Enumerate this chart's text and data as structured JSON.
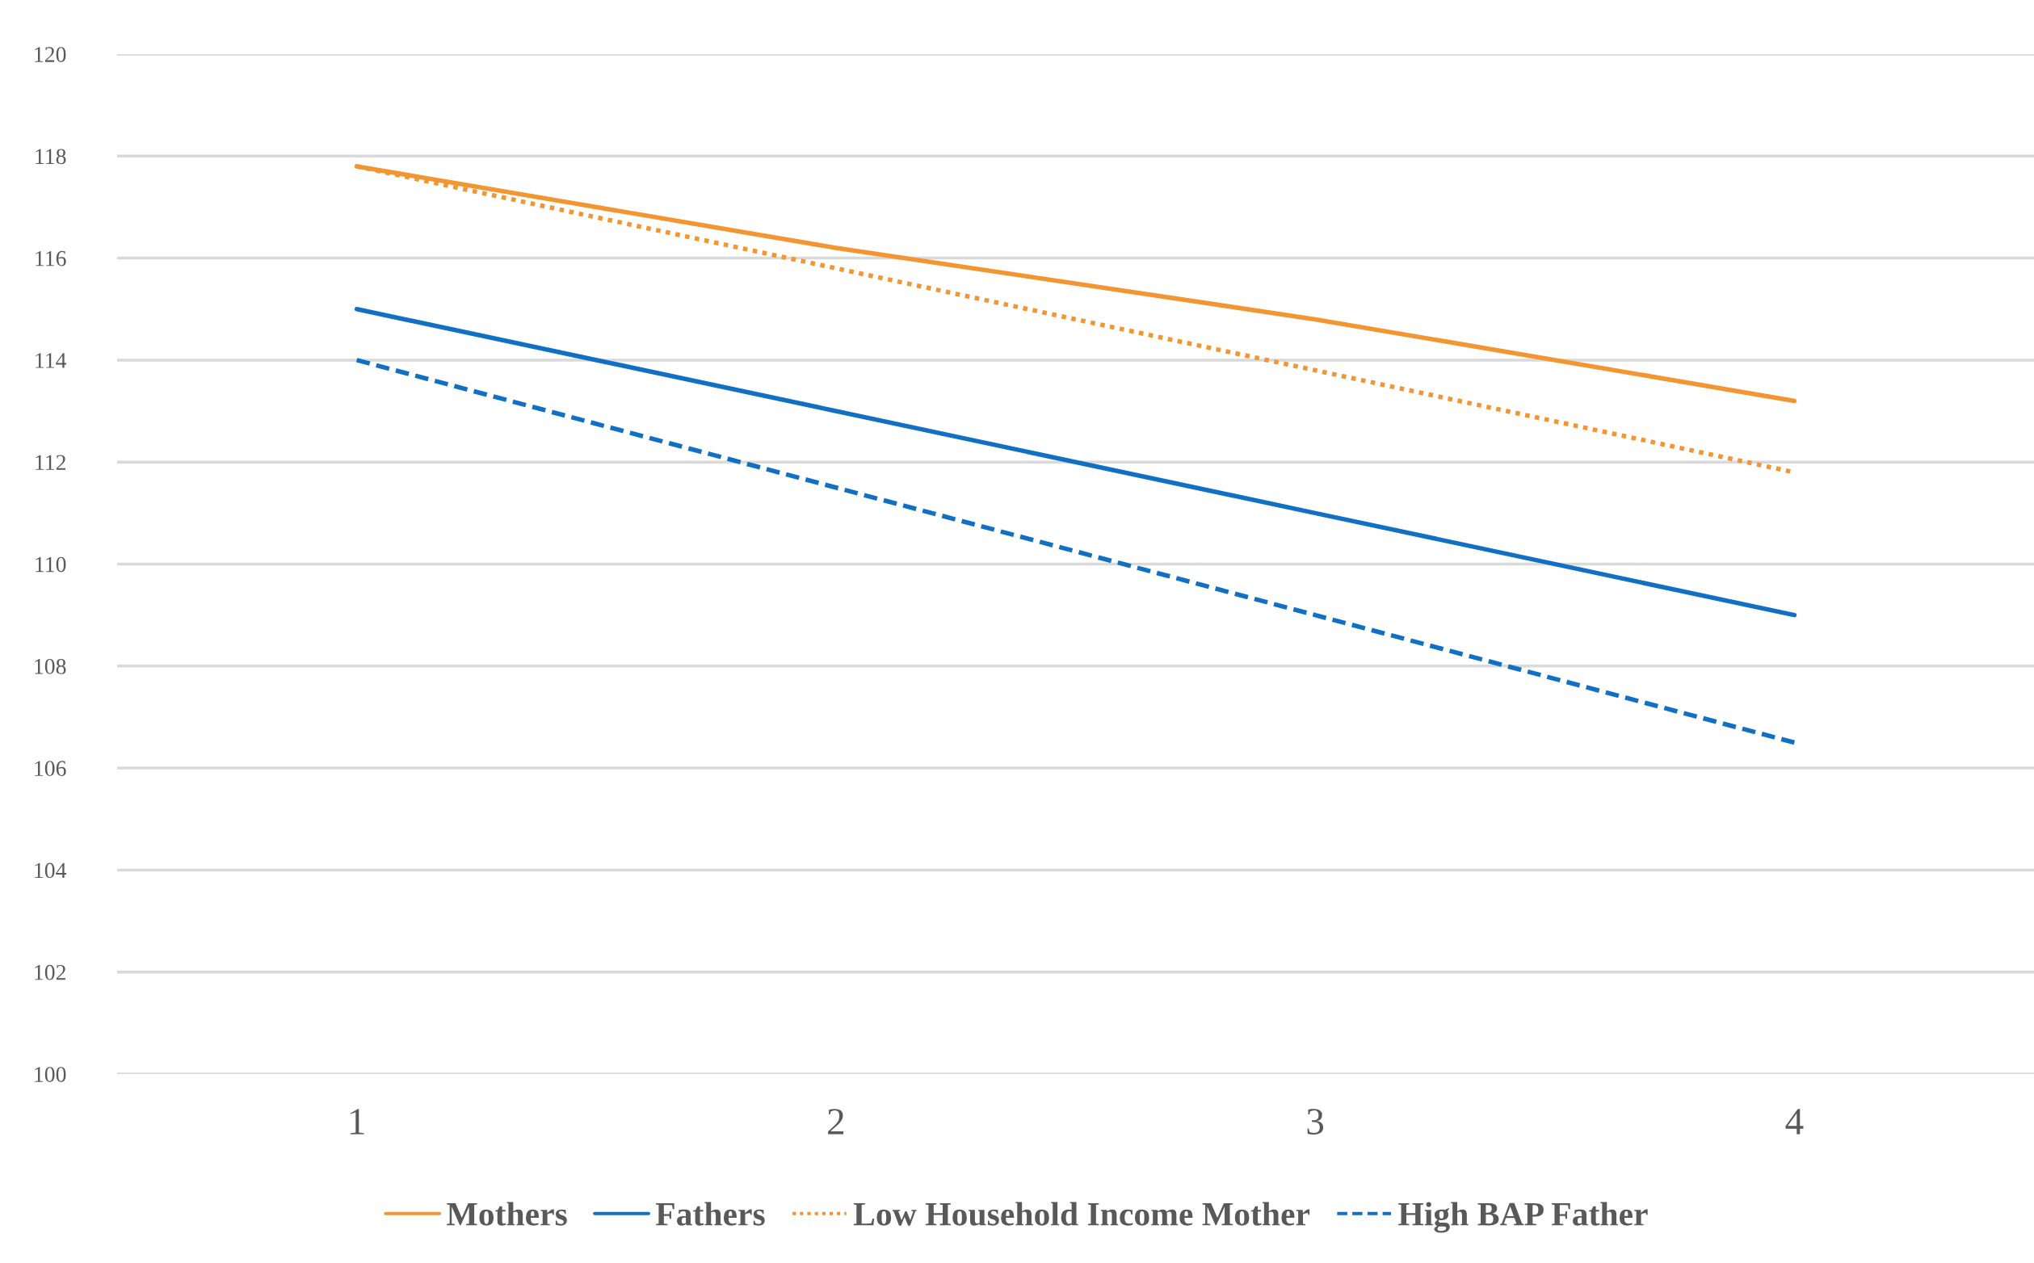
{
  "chart_data": {
    "type": "line",
    "categories": [
      "1",
      "2",
      "3",
      "4"
    ],
    "series": [
      {
        "name": "Mothers",
        "color": "#f39530",
        "line_style": "solid",
        "values": [
          117.8,
          116.2,
          114.8,
          113.2
        ]
      },
      {
        "name": "Fathers",
        "color": "#1170c4",
        "line_style": "solid",
        "values": [
          115,
          113,
          111,
          109
        ]
      },
      {
        "name": "Low Household Income Mother",
        "color": "#f39530",
        "line_style": "dotted",
        "values": [
          117.8,
          115.8,
          113.8,
          111.8
        ]
      },
      {
        "name": "High BAP Father",
        "color": "#1170c4",
        "line_style": "dashed",
        "values": [
          114,
          111.5,
          109,
          106.5
        ]
      }
    ],
    "ylim": [
      100,
      120
    ],
    "yticks": [
      100,
      102,
      104,
      106,
      108,
      110,
      112,
      114,
      116,
      118,
      120
    ],
    "grid": "y",
    "legend": "bottom",
    "marker": "none"
  }
}
